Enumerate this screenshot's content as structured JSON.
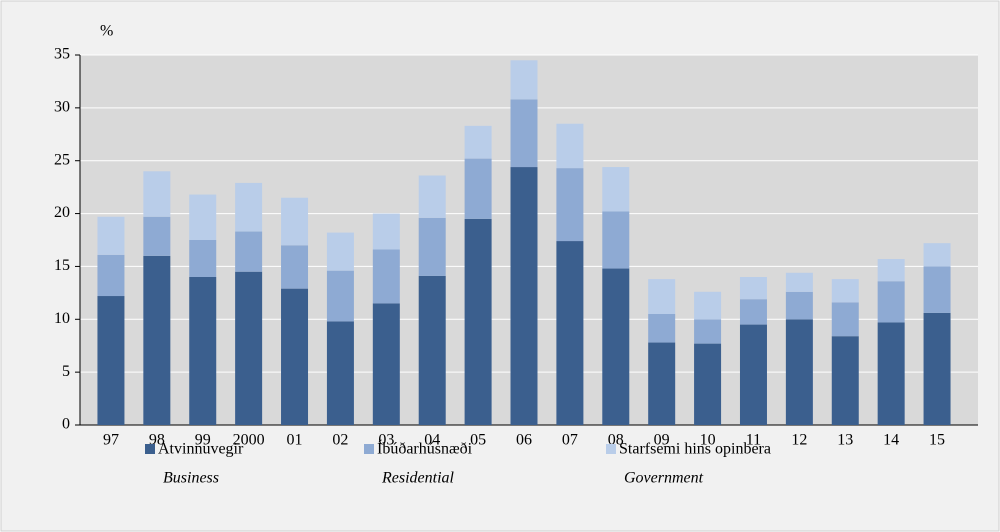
{
  "chart_data": {
    "type": "stacked_bar",
    "ylabel": "%",
    "categories": [
      "97",
      "98",
      "99",
      "2000",
      "01",
      "02",
      "03",
      "04",
      "05",
      "06",
      "07",
      "08",
      "09",
      "10",
      "11",
      "12",
      "13",
      "14",
      "15"
    ],
    "series": [
      {
        "name": "Atvinnuvegir",
        "name_en": "Business",
        "color": "#3b5f8e",
        "values": [
          12.2,
          16.0,
          14.0,
          14.5,
          12.9,
          9.8,
          11.5,
          14.1,
          19.5,
          24.4,
          17.4,
          14.8,
          7.8,
          7.7,
          9.5,
          10.0,
          8.4,
          9.7,
          10.6
        ]
      },
      {
        "name": "Íbúðarhúsnæði",
        "name_en": "Residential",
        "color": "#8eaad3",
        "values": [
          3.9,
          3.7,
          3.5,
          3.8,
          4.1,
          4.8,
          5.1,
          5.5,
          5.7,
          6.4,
          6.9,
          5.4,
          2.7,
          2.3,
          2.4,
          2.6,
          3.2,
          3.9,
          4.4
        ]
      },
      {
        "name": "Starfsemi hins opinbera",
        "name_en": "Government",
        "color": "#b9cde9",
        "values": [
          3.6,
          4.3,
          4.3,
          4.6,
          4.5,
          3.6,
          3.4,
          4.0,
          3.1,
          3.7,
          4.2,
          4.2,
          3.3,
          2.6,
          2.1,
          1.8,
          2.2,
          2.1,
          2.2
        ]
      }
    ],
    "ylim": [
      0,
      35
    ],
    "yticks": [
      0,
      5,
      10,
      15,
      20,
      25,
      30,
      35
    ],
    "grid": true
  }
}
